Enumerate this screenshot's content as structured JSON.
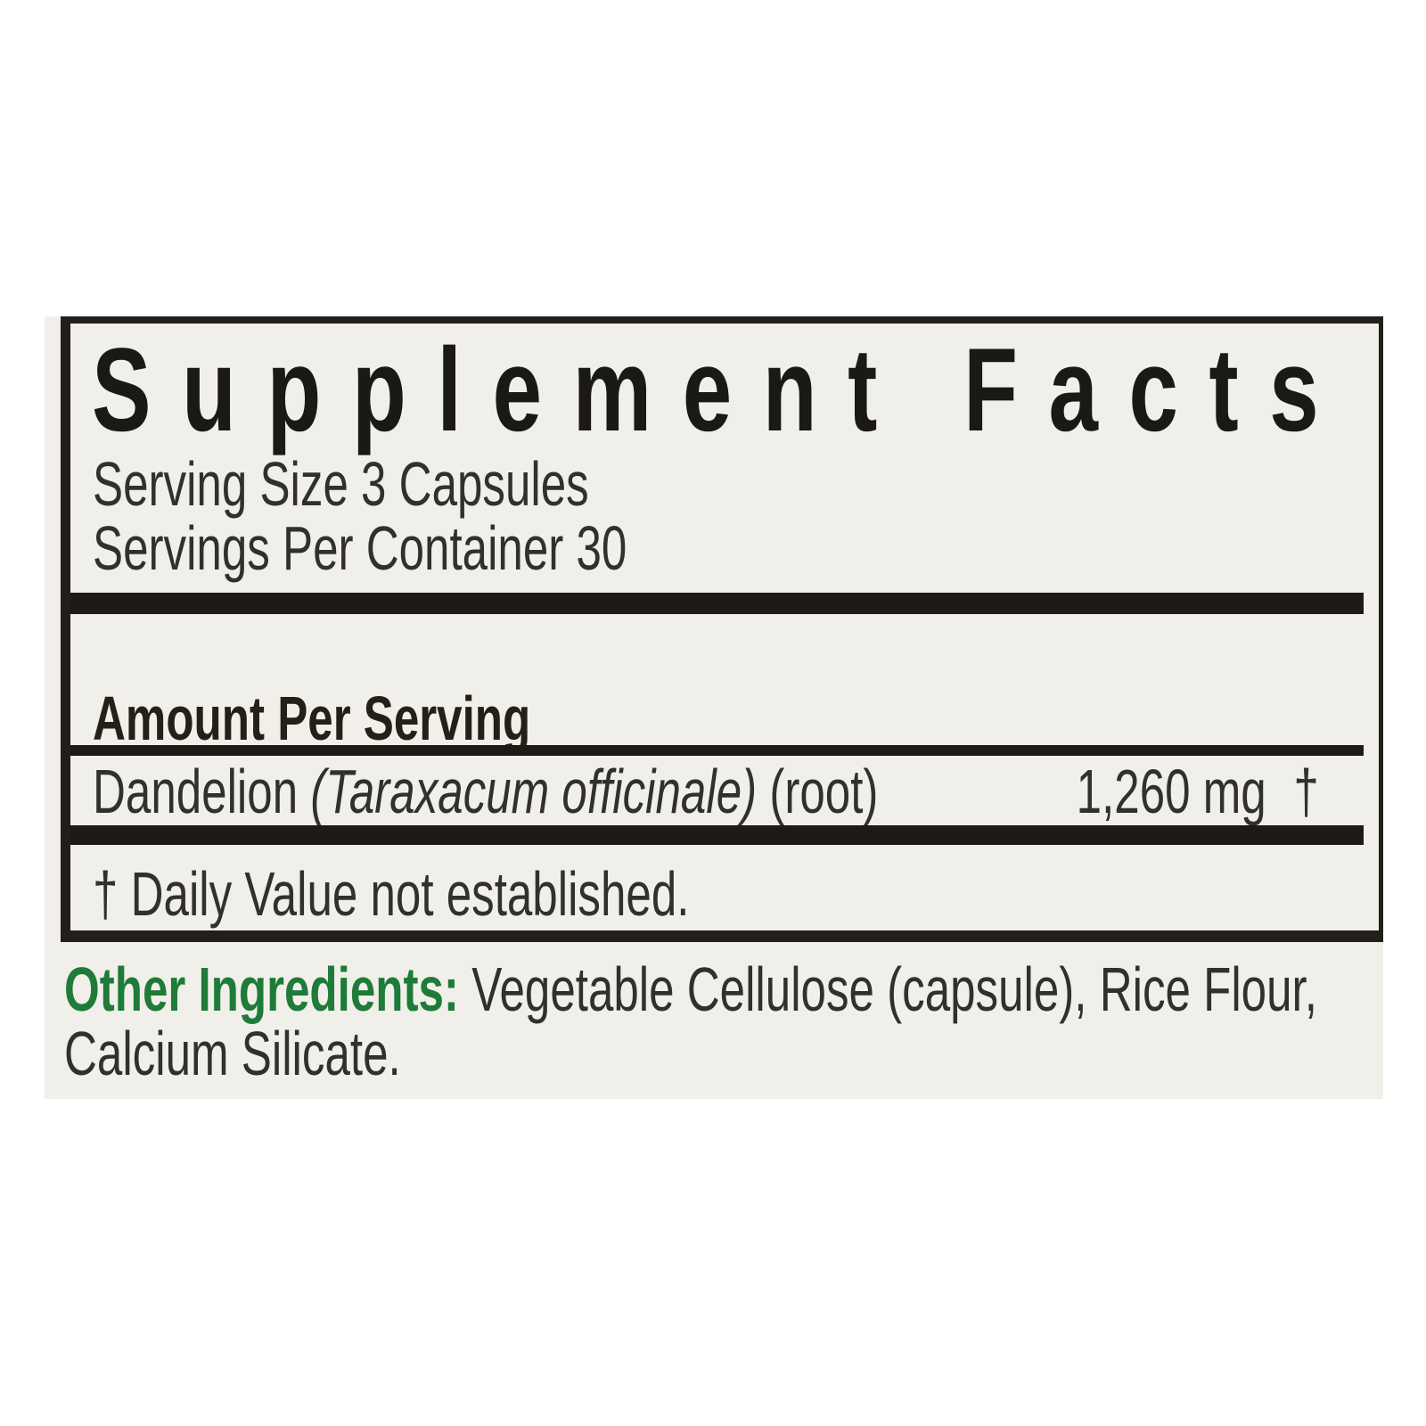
{
  "label": {
    "title": "Supplement Facts",
    "serving_size": "Serving Size 3 Capsules",
    "servings_per_container": "Servings Per Container 30",
    "amount_per_serving_heading": "Amount Per Serving",
    "ingredient": {
      "name": "Dandelion",
      "latin_name": "(Taraxacum officinale)",
      "part": "(root)",
      "amount": "1,260 mg",
      "daily_value_symbol": "†"
    },
    "footnote": "† Daily Value not established.",
    "other_ingredients": {
      "label": "Other Ingredients:",
      "line1": "Vegetable Cellulose (capsule), Rice Flour,",
      "line2": "Calcium Silicate."
    },
    "colors": {
      "accent_green": "#1e7b39",
      "ink": "#221f1b",
      "label_background": "#f1efe9"
    }
  }
}
